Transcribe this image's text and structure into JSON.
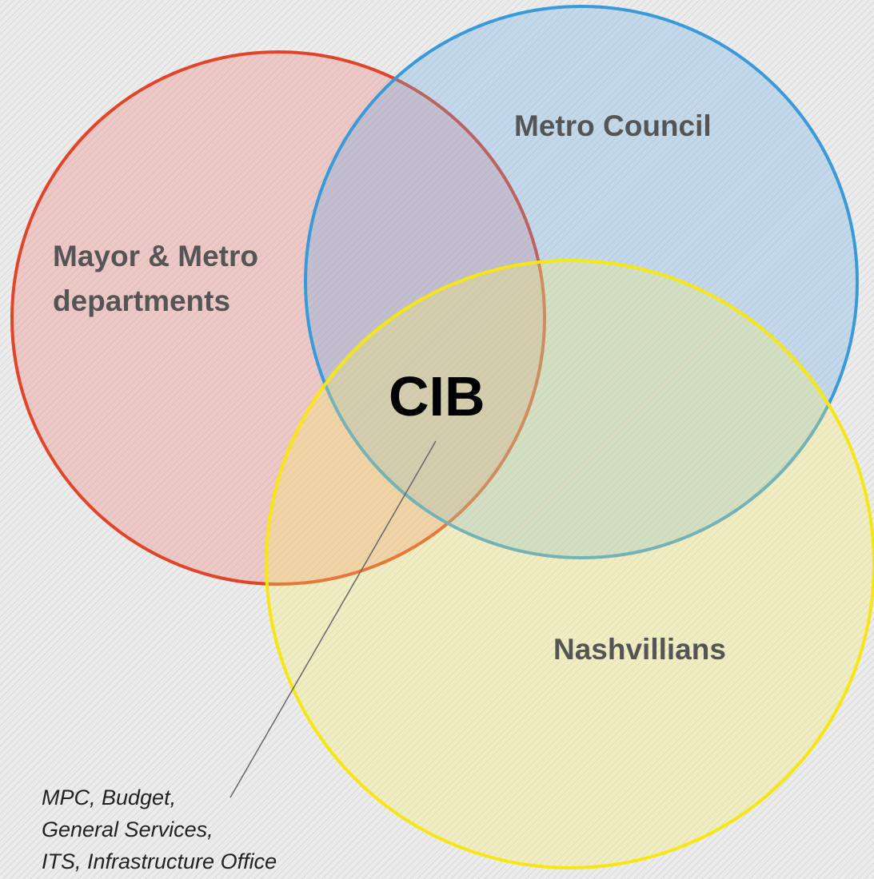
{
  "circles": [
    {
      "label": "Mayor & Metro departments",
      "lines": [
        "Mayor & Metro",
        "departments"
      ]
    },
    {
      "label": "Metro Council"
    },
    {
      "label": "Nashvillians"
    }
  ],
  "center": {
    "label": "CIB"
  },
  "callout": {
    "lines": [
      "MPC, Budget,",
      "General Services,",
      "ITS, Infrastructure Office"
    ]
  }
}
